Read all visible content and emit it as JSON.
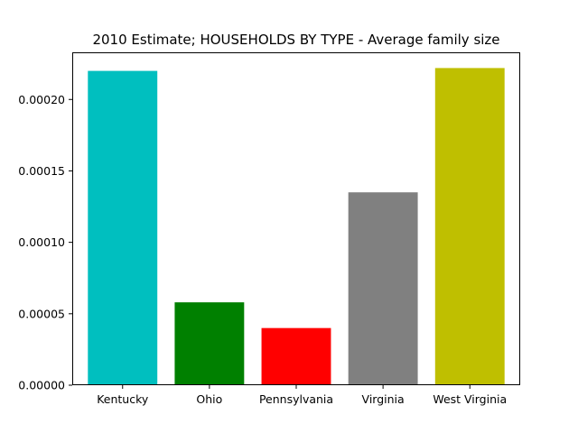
{
  "chart_data": {
    "type": "bar",
    "title": "2010 Estimate; HOUSEHOLDS BY TYPE - Average family size",
    "xlabel": "",
    "ylabel": "",
    "categories": [
      "Kentucky",
      "Ohio",
      "Pennsylvania",
      "Virginia",
      "West Virginia"
    ],
    "values": [
      0.00022,
      5.8e-05,
      4e-05,
      0.000135,
      0.000222
    ],
    "colors": [
      "#00bfbf",
      "#008000",
      "#ff0000",
      "#808080",
      "#bfbf00"
    ],
    "ylim": [
      0,
      0.000233
    ],
    "yticks": [
      0,
      5e-05,
      0.0001,
      0.00015,
      0.0002
    ],
    "ytick_labels": [
      "0.00000",
      "0.00005",
      "0.00010",
      "0.00015",
      "0.00020"
    ],
    "grid": false,
    "legend": "none"
  }
}
